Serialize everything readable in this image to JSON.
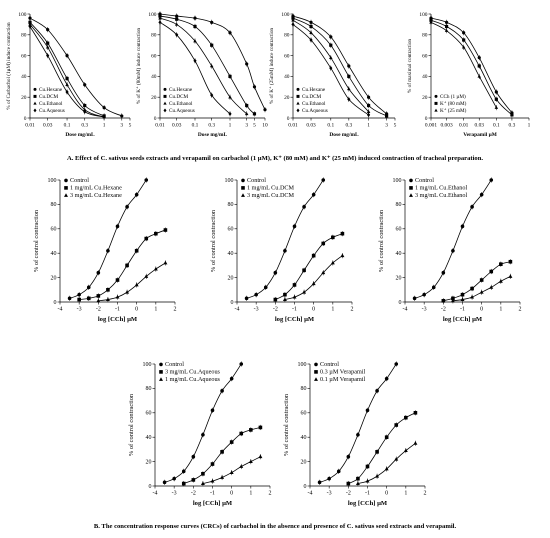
{
  "figure": {
    "caption_a": "A. Effect of C. sativus seeds extracts and verapamil on carbachol (1 µM), K⁺ (80 mM) and K⁺ (25 mM) induced contraction of tracheal preparation.",
    "caption_b": "B. The concentration response curves (CRCs) of carbachol in the absence and presence of C. sativus seed  extracts and verapamil."
  },
  "chart_data": [
    {
      "type": "line",
      "ylabel": "% of Carbachol (1µM) induce contraction",
      "xlabel": "Dose mg/mL",
      "xscale": "log",
      "xticks": [
        "0.01",
        "0.03",
        "0.1",
        "0.3",
        "1",
        "3",
        "5"
      ],
      "yticks": [
        "0",
        "20",
        "40",
        "60",
        "80",
        "100"
      ],
      "ylim": [
        0,
        100
      ],
      "legend": "bottom-left",
      "series": [
        {
          "name": "Cu.Hexane",
          "marker": "circle",
          "x": [
            0.01,
            0.03,
            0.1,
            0.3,
            1,
            3
          ],
          "y": [
            96,
            85,
            60,
            32,
            10,
            2
          ]
        },
        {
          "name": "Cu.DCM",
          "marker": "square",
          "x": [
            0.01,
            0.03,
            0.1,
            0.3,
            1
          ],
          "y": [
            92,
            72,
            38,
            12,
            2
          ]
        },
        {
          "name": "Cu.Ethanol",
          "marker": "triangle",
          "x": [
            0.01,
            0.03,
            0.1,
            0.3,
            1
          ],
          "y": [
            90,
            68,
            32,
            8,
            1
          ]
        },
        {
          "name": "Cu.Aqueous",
          "marker": "diamond",
          "x": [
            0.01,
            0.03,
            0.1,
            0.3,
            1
          ],
          "y": [
            88,
            60,
            25,
            6,
            1
          ]
        }
      ]
    },
    {
      "type": "line",
      "ylabel": "% of K⁺ (80mM) induce contraction",
      "xlabel": "Dose mg/mL",
      "xscale": "log",
      "xticks": [
        "0.01",
        "0.03",
        "0.1",
        "0.3",
        "1",
        "3",
        "5",
        "10"
      ],
      "yticks": [
        "0",
        "20",
        "40",
        "60",
        "80",
        "100"
      ],
      "ylim": [
        0,
        100
      ],
      "legend": "bottom-left",
      "series": [
        {
          "name": "Cu.Hexane",
          "marker": "circle",
          "x": [
            0.01,
            0.03,
            0.1,
            0.3,
            1,
            3,
            5,
            10
          ],
          "y": [
            100,
            98,
            96,
            92,
            82,
            52,
            30,
            8
          ]
        },
        {
          "name": "Cu.DCM",
          "marker": "square",
          "x": [
            0.01,
            0.03,
            0.1,
            0.3,
            1,
            3,
            5
          ],
          "y": [
            98,
            95,
            88,
            70,
            40,
            12,
            4
          ]
        },
        {
          "name": "Cu.Ethanol",
          "marker": "triangle",
          "x": [
            0.01,
            0.03,
            0.1,
            0.3,
            1,
            3
          ],
          "y": [
            96,
            90,
            74,
            50,
            20,
            4
          ]
        },
        {
          "name": "Cu.Aqueous",
          "marker": "diamond",
          "x": [
            0.01,
            0.03,
            0.1,
            0.3,
            1
          ],
          "y": [
            92,
            80,
            55,
            22,
            4
          ]
        }
      ]
    },
    {
      "type": "line",
      "ylabel": "% of K⁺ (25mM) induce contraction",
      "xlabel": "Dose mg/mL",
      "xscale": "log",
      "xticks": [
        "0.01",
        "0.03",
        "0.1",
        "0.3",
        "1",
        "3",
        "5"
      ],
      "yticks": [
        "0",
        "20",
        "40",
        "60",
        "80",
        "100"
      ],
      "ylim": [
        0,
        100
      ],
      "legend": "bottom-left",
      "series": [
        {
          "name": "Cu.Hexane",
          "marker": "circle",
          "x": [
            0.01,
            0.03,
            0.1,
            0.3,
            1,
            3
          ],
          "y": [
            98,
            92,
            78,
            50,
            20,
            4
          ]
        },
        {
          "name": "Cu.DCM",
          "marker": "square",
          "x": [
            0.01,
            0.03,
            0.1,
            0.3,
            1,
            3
          ],
          "y": [
            96,
            88,
            70,
            40,
            12,
            2
          ]
        },
        {
          "name": "Cu.Ethanol",
          "marker": "triangle",
          "x": [
            0.01,
            0.03,
            0.1,
            0.3,
            1
          ],
          "y": [
            94,
            82,
            58,
            28,
            6
          ]
        },
        {
          "name": "Cu.Aqueous",
          "marker": "diamond",
          "x": [
            0.01,
            0.03,
            0.1,
            0.3,
            1
          ],
          "y": [
            90,
            75,
            48,
            18,
            3
          ]
        }
      ]
    },
    {
      "type": "line",
      "ylabel": "% of maximal contraction",
      "xlabel": "Verapamil µM",
      "xscale": "log",
      "xticks": [
        "0.001",
        "0.003",
        "0.01",
        "0.03",
        "0.1",
        "0.3",
        "1"
      ],
      "yticks": [
        "0",
        "20",
        "40",
        "60",
        "80",
        "100"
      ],
      "ylim": [
        0,
        100
      ],
      "legend": "bottom-left",
      "series": [
        {
          "name": "CCh (1 µM)",
          "marker": "circle",
          "x": [
            0.001,
            0.003,
            0.01,
            0.03,
            0.1,
            0.3
          ],
          "y": [
            96,
            92,
            82,
            58,
            25,
            5
          ]
        },
        {
          "name": "K⁺ (80 mM)",
          "marker": "square",
          "x": [
            0.001,
            0.003,
            0.01,
            0.03,
            0.1,
            0.3
          ],
          "y": [
            94,
            88,
            75,
            50,
            18,
            3
          ]
        },
        {
          "name": "K⁺ (25 mM)",
          "marker": "triangle",
          "x": [
            0.001,
            0.003,
            0.01,
            0.03,
            0.1
          ],
          "y": [
            92,
            84,
            68,
            40,
            10
          ]
        }
      ]
    },
    {
      "type": "line",
      "ylabel": "% of control contraction",
      "xlabel": "log [CCh] µM",
      "xticks": [
        "-4",
        "-3",
        "-2",
        "-1",
        "0",
        "1",
        "2"
      ],
      "yticks": [
        "0",
        "20",
        "40",
        "60",
        "80",
        "100"
      ],
      "xlim": [
        -4,
        2
      ],
      "ylim": [
        0,
        100
      ],
      "legend": "top-left",
      "series": [
        {
          "name": "Control",
          "marker": "circle",
          "x": [
            -3.5,
            -3,
            -2.5,
            -2,
            -1.5,
            -1,
            -0.5,
            0,
            0.5
          ],
          "y": [
            3,
            6,
            12,
            24,
            42,
            62,
            78,
            88,
            100
          ]
        },
        {
          "name": "1 mg/mL Cu.Hexane",
          "marker": "square",
          "x": [
            -3,
            -2.5,
            -2,
            -1.5,
            -1,
            -0.5,
            0,
            0.5,
            1,
            1.5
          ],
          "y": [
            2,
            3,
            5,
            10,
            18,
            30,
            42,
            52,
            56,
            59
          ]
        },
        {
          "name": "3 mg/mL Cu.Hexane",
          "marker": "triangle",
          "x": [
            -2,
            -1.5,
            -1,
            -0.5,
            0,
            0.5,
            1,
            1.5
          ],
          "y": [
            1,
            2,
            4,
            8,
            14,
            21,
            27,
            32
          ]
        }
      ]
    },
    {
      "type": "line",
      "ylabel": "% of control contraction",
      "xlabel": "log [CCh] µM",
      "xticks": [
        "-4",
        "-3",
        "-2",
        "-1",
        "0",
        "1",
        "2"
      ],
      "yticks": [
        "0",
        "20",
        "40",
        "60",
        "80",
        "100"
      ],
      "xlim": [
        -4,
        2
      ],
      "ylim": [
        0,
        100
      ],
      "legend": "top-left",
      "series": [
        {
          "name": "Control",
          "marker": "circle",
          "x": [
            -3.5,
            -3,
            -2.5,
            -2,
            -1.5,
            -1,
            -0.5,
            0,
            0.5
          ],
          "y": [
            3,
            6,
            12,
            24,
            42,
            62,
            78,
            88,
            100
          ]
        },
        {
          "name": "1 mg/mL Cu.DCM",
          "marker": "square",
          "x": [
            -2,
            -1.5,
            -1,
            -0.5,
            0,
            0.5,
            1,
            1.5
          ],
          "y": [
            2,
            6,
            14,
            26,
            38,
            48,
            53,
            56
          ]
        },
        {
          "name": "3 mg/mL Cu.DCM",
          "marker": "triangle",
          "x": [
            -1.5,
            -1,
            -0.5,
            0,
            0.5,
            1,
            1.5
          ],
          "y": [
            2,
            4,
            8,
            15,
            24,
            32,
            38
          ]
        }
      ]
    },
    {
      "type": "line",
      "ylabel": "% of control contraction",
      "xlabel": "log [CCh] µM",
      "xticks": [
        "-4",
        "-3",
        "-2",
        "-1",
        "0",
        "1",
        "2"
      ],
      "yticks": [
        "0",
        "20",
        "40",
        "60",
        "80",
        "100"
      ],
      "xlim": [
        -4,
        2
      ],
      "ylim": [
        0,
        100
      ],
      "legend": "top-left",
      "series": [
        {
          "name": "Control",
          "marker": "circle",
          "x": [
            -3.5,
            -3,
            -2.5,
            -2,
            -1.5,
            -1,
            -0.5,
            0,
            0.5
          ],
          "y": [
            3,
            6,
            12,
            24,
            42,
            62,
            78,
            88,
            100
          ]
        },
        {
          "name": "1 mg/mL Cu.Ethanol",
          "marker": "square",
          "x": [
            -2,
            -1.5,
            -1,
            -0.5,
            0,
            0.5,
            1,
            1.5
          ],
          "y": [
            1,
            3,
            6,
            11,
            18,
            25,
            31,
            33
          ]
        },
        {
          "name": "3 mg/mL Cu.Ethanol",
          "marker": "triangle",
          "x": [
            -1.5,
            -1,
            -0.5,
            0,
            0.5,
            1,
            1.5
          ],
          "y": [
            1,
            2,
            4,
            8,
            12,
            17,
            21
          ]
        }
      ]
    },
    {
      "type": "line",
      "ylabel": "% of control contraction",
      "xlabel": "log [CCh] µM",
      "xticks": [
        "-4",
        "-3",
        "-2",
        "-1",
        "0",
        "1",
        "2"
      ],
      "yticks": [
        "0",
        "20",
        "40",
        "60",
        "80",
        "100"
      ],
      "xlim": [
        -4,
        2
      ],
      "ylim": [
        0,
        100
      ],
      "legend": "top-left",
      "series": [
        {
          "name": "Control",
          "marker": "circle",
          "x": [
            -3.5,
            -3,
            -2.5,
            -2,
            -1.5,
            -1,
            -0.5,
            0,
            0.5
          ],
          "y": [
            3,
            6,
            12,
            24,
            42,
            62,
            78,
            88,
            100
          ]
        },
        {
          "name": "3 mg/mL Cu.Aqueous",
          "marker": "square",
          "x": [
            -2.5,
            -2,
            -1.5,
            -1,
            -0.5,
            0,
            0.5,
            1,
            1.5
          ],
          "y": [
            2,
            5,
            10,
            18,
            28,
            36,
            43,
            46,
            48
          ]
        },
        {
          "name": "1 mg/mL Cu.Aqueous",
          "marker": "triangle",
          "x": [
            -1.5,
            -1,
            -0.5,
            0,
            0.5,
            1,
            1.5
          ],
          "y": [
            2,
            4,
            7,
            11,
            16,
            20,
            24
          ]
        }
      ]
    },
    {
      "type": "line",
      "ylabel": "% of control contraction",
      "xlabel": "log [CCh] µM",
      "xticks": [
        "-4",
        "-3",
        "-2",
        "-1",
        "0",
        "1",
        "2"
      ],
      "yticks": [
        "0",
        "20",
        "40",
        "60",
        "80",
        "100"
      ],
      "xlim": [
        -4,
        2
      ],
      "ylim": [
        0,
        100
      ],
      "legend": "top-left",
      "series": [
        {
          "name": "Control",
          "marker": "circle",
          "x": [
            -3.5,
            -3,
            -2.5,
            -2,
            -1.5,
            -1,
            -0.5,
            0,
            0.5
          ],
          "y": [
            3,
            6,
            12,
            24,
            42,
            62,
            78,
            88,
            100
          ]
        },
        {
          "name": "0.3 µM Verapamil",
          "marker": "square",
          "x": [
            -2,
            -1.5,
            -1,
            -0.5,
            0,
            0.5,
            1,
            1.5
          ],
          "y": [
            2,
            6,
            16,
            28,
            40,
            50,
            56,
            60
          ]
        },
        {
          "name": "0.1 µM Verapamil",
          "marker": "triangle",
          "x": [
            -1.5,
            -1,
            -0.5,
            0,
            0.5,
            1,
            1.5
          ],
          "y": [
            2,
            4,
            8,
            14,
            22,
            29,
            35
          ]
        }
      ]
    }
  ]
}
